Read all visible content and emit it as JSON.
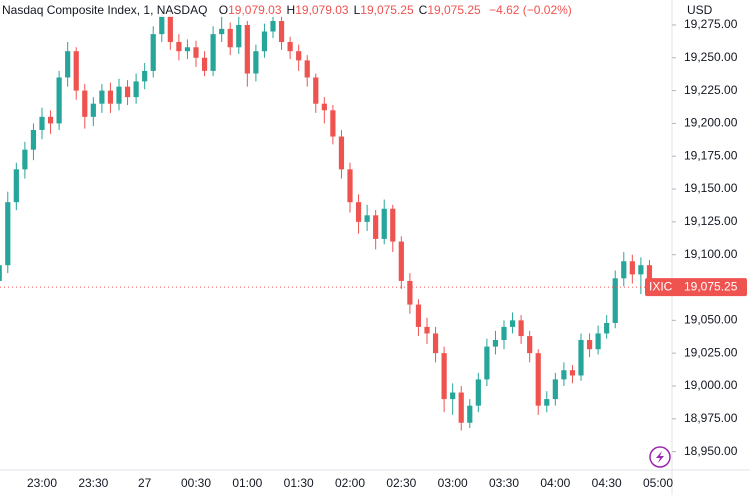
{
  "chart_data": {
    "type": "candlestick",
    "title": "Nasdaq Composite Index, 1, NASDAQ",
    "ohlc_legend": [
      {
        "label": "O",
        "value": "19,079.03"
      },
      {
        "label": "H",
        "value": "19,079.03"
      },
      {
        "label": "L",
        "value": "19,075.25"
      },
      {
        "label": "C",
        "value": "19,075.25"
      }
    ],
    "change": "−4.62 (−0.02%)",
    "currency": "USD",
    "symbol": "IXIC",
    "last_price": 19075.25,
    "last_price_label": "19,075.25",
    "up_color": "#26a69a",
    "down_color": "#ef5350",
    "categories": [
      null,
      null,
      null,
      null,
      null,
      "23:00",
      null,
      null,
      null,
      null,
      null,
      "23:30",
      null,
      null,
      null,
      null,
      null,
      "27",
      null,
      null,
      null,
      null,
      null,
      "00:30",
      null,
      null,
      null,
      null,
      null,
      "01:00",
      null,
      null,
      null,
      null,
      null,
      "01:30",
      null,
      null,
      null,
      null,
      null,
      "02:00",
      null,
      null,
      null,
      null,
      null,
      "02:30",
      null,
      null,
      null,
      null,
      null,
      "03:00",
      null,
      null,
      null,
      null,
      null,
      "03:30",
      null,
      null,
      null,
      null,
      null,
      "04:00",
      null,
      null,
      null,
      null,
      null,
      "04:30",
      null,
      null,
      null,
      null,
      null,
      "05:00"
    ],
    "open": [
      19080,
      19092,
      19140,
      19165,
      19180,
      19195,
      19205,
      19200,
      19235,
      19255,
      19225,
      19205,
      19215,
      19225,
      19215,
      19228,
      19220,
      19232,
      19240,
      19268,
      19282,
      19262,
      19255,
      19258,
      19250,
      19240,
      19268,
      19272,
      19258,
      19275,
      19238,
      19255,
      19270,
      19278,
      19262,
      19255,
      19248,
      19235,
      19215,
      19210,
      19190,
      19165,
      19140,
      19125,
      19130,
      19112,
      19135,
      19110,
      19080,
      19062,
      19045,
      19040,
      19025,
      18990,
      18995,
      18972,
      18985,
      19005,
      19030,
      19035,
      19045,
      19050,
      19038,
      19025,
      18985,
      18990,
      19005,
      19012,
      19008,
      19035,
      19028,
      19040,
      19048,
      19082,
      19095,
      19085,
      19092,
      19079.03
    ],
    "high": [
      19098,
      19148,
      19170,
      19186,
      19200,
      19212,
      19210,
      19240,
      19262,
      19258,
      19230,
      19220,
      19230,
      19231,
      19234,
      19233,
      19238,
      19246,
      19274,
      19288,
      19285,
      19268,
      19264,
      19263,
      19255,
      19274,
      19284,
      19277,
      19284,
      19278,
      19260,
      19276,
      19285,
      19282,
      19266,
      19260,
      19252,
      19238,
      19220,
      19214,
      19195,
      19170,
      19146,
      19138,
      19134,
      19142,
      19138,
      19114,
      19086,
      19066,
      19052,
      19045,
      19030,
      19002,
      19000,
      18990,
      19010,
      19036,
      19042,
      19050,
      19056,
      19054,
      19042,
      19028,
      18996,
      19010,
      19018,
      19016,
      19040,
      19040,
      19046,
      19054,
      19088,
      19102,
      19100,
      19098,
      19096,
      19079.03
    ],
    "low": [
      19072,
      19086,
      19134,
      19158,
      19172,
      19188,
      19192,
      19195,
      19228,
      19218,
      19196,
      19198,
      19208,
      19208,
      19210,
      19214,
      19215,
      19226,
      19235,
      19262,
      19256,
      19248,
      19249,
      19243,
      19236,
      19236,
      19262,
      19252,
      19253,
      19228,
      19232,
      19250,
      19265,
      19256,
      19249,
      19240,
      19228,
      19208,
      19200,
      19184,
      19158,
      19132,
      19116,
      19118,
      19104,
      19108,
      19102,
      19074,
      19055,
      19038,
      19032,
      19018,
      18980,
      18978,
      18966,
      18968,
      18980,
      19000,
      19024,
      19028,
      19040,
      19032,
      19018,
      18978,
      18980,
      18985,
      19000,
      19002,
      19004,
      19022,
      19024,
      19036,
      19044,
      19076,
      19078,
      19070,
      19074,
      19075.25
    ],
    "close": [
      19092,
      19140,
      19165,
      19180,
      19195,
      19205,
      19200,
      19235,
      19255,
      19225,
      19205,
      19215,
      19225,
      19215,
      19228,
      19220,
      19232,
      19240,
      19268,
      19282,
      19262,
      19255,
      19258,
      19250,
      19240,
      19268,
      19272,
      19258,
      19275,
      19238,
      19255,
      19270,
      19278,
      19262,
      19255,
      19248,
      19235,
      19215,
      19210,
      19190,
      19165,
      19140,
      19125,
      19130,
      19112,
      19135,
      19110,
      19080,
      19062,
      19045,
      19040,
      19025,
      18990,
      18995,
      18972,
      18985,
      19005,
      19030,
      19035,
      19045,
      19050,
      19038,
      19025,
      18985,
      18990,
      19005,
      19012,
      19008,
      19035,
      19028,
      19040,
      19048,
      19082,
      19095,
      19085,
      19092,
      19080,
      19075.25
    ],
    "ylim": [
      18936,
      19294
    ],
    "yticks": [
      {
        "value": 18950,
        "label": "18,950.00"
      },
      {
        "value": 18975,
        "label": "18,975.00"
      },
      {
        "value": 19000,
        "label": "19,000.00"
      },
      {
        "value": 19025,
        "label": "19,025.00"
      },
      {
        "value": 19050,
        "label": "19,050.00"
      },
      {
        "value": 19075,
        "label": "19,075.00"
      },
      {
        "value": 19100,
        "label": "19,100.00"
      },
      {
        "value": 19125,
        "label": "19,125.00"
      },
      {
        "value": 19150,
        "label": "19,150.00"
      },
      {
        "value": 19175,
        "label": "19,175.00"
      },
      {
        "value": 19200,
        "label": "19,200.00"
      },
      {
        "value": 19225,
        "label": "19,225.00"
      },
      {
        "value": 19250,
        "label": "19,250.00"
      },
      {
        "value": 19275,
        "label": "19,275.00"
      }
    ],
    "grid": false
  }
}
